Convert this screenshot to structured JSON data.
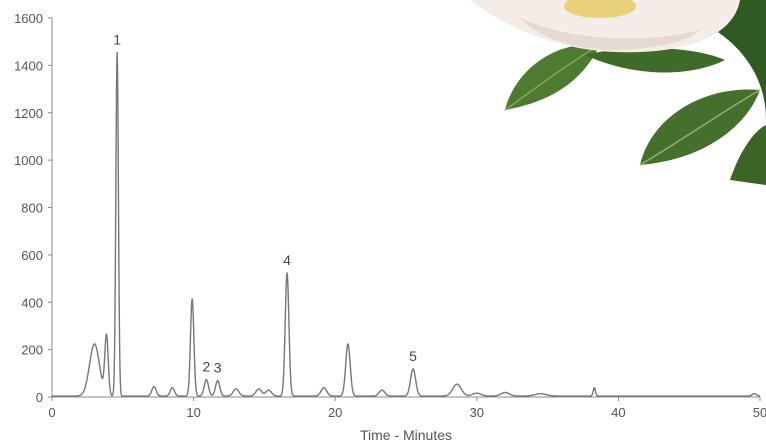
{
  "chart_data": {
    "type": "line",
    "title": "",
    "xlabel": "Time - Minutes",
    "ylabel": "",
    "xlim": [
      0,
      50
    ],
    "ylim": [
      0,
      1600
    ],
    "xticks": [
      0,
      10,
      20,
      30,
      40,
      50
    ],
    "yticks": [
      0,
      200,
      400,
      600,
      800,
      1000,
      1200,
      1400,
      1600
    ],
    "grid": false,
    "series": [
      {
        "color": "#777777",
        "peaks": [
          {
            "t": 3.0,
            "h": 220,
            "w": 0.35
          },
          {
            "t": 3.85,
            "h": 250,
            "w": 0.12
          },
          {
            "t": 4.6,
            "h": 1450,
            "w": 0.09
          },
          {
            "t": 7.2,
            "h": 40,
            "w": 0.15
          },
          {
            "t": 8.5,
            "h": 35,
            "w": 0.15
          },
          {
            "t": 9.9,
            "h": 410,
            "w": 0.12
          },
          {
            "t": 10.9,
            "h": 70,
            "w": 0.15
          },
          {
            "t": 11.7,
            "h": 65,
            "w": 0.15
          },
          {
            "t": 13.0,
            "h": 30,
            "w": 0.2
          },
          {
            "t": 14.6,
            "h": 30,
            "w": 0.2
          },
          {
            "t": 15.3,
            "h": 25,
            "w": 0.2
          },
          {
            "t": 16.6,
            "h": 520,
            "w": 0.13
          },
          {
            "t": 19.2,
            "h": 35,
            "w": 0.2
          },
          {
            "t": 20.9,
            "h": 220,
            "w": 0.16
          },
          {
            "t": 23.3,
            "h": 25,
            "w": 0.2
          },
          {
            "t": 25.5,
            "h": 115,
            "w": 0.18
          },
          {
            "t": 28.6,
            "h": 50,
            "w": 0.3
          },
          {
            "t": 30.0,
            "h": 12,
            "w": 0.3
          },
          {
            "t": 32.0,
            "h": 15,
            "w": 0.3
          },
          {
            "t": 34.5,
            "h": 10,
            "w": 0.4
          },
          {
            "t": 38.3,
            "h": 35,
            "w": 0.08
          },
          {
            "t": 49.6,
            "h": 10,
            "w": 0.15
          }
        ]
      }
    ],
    "annotations": [
      {
        "text": "1",
        "x": 4.6,
        "y": 1450
      },
      {
        "text": "2",
        "x": 10.9,
        "y": 70
      },
      {
        "text": "3",
        "x": 11.7,
        "y": 65
      },
      {
        "text": "4",
        "x": 16.6,
        "y": 520
      },
      {
        "text": "5",
        "x": 25.5,
        "y": 115
      }
    ]
  },
  "colors": {
    "leaf_dark": "#3f6b2a",
    "leaf_light": "#7da85a",
    "petal": "#f6eee8",
    "flower_center": "#e9d07a",
    "axis": "#888888"
  },
  "decoration": {
    "image": "white-magnolia-flower-with-leaves"
  }
}
